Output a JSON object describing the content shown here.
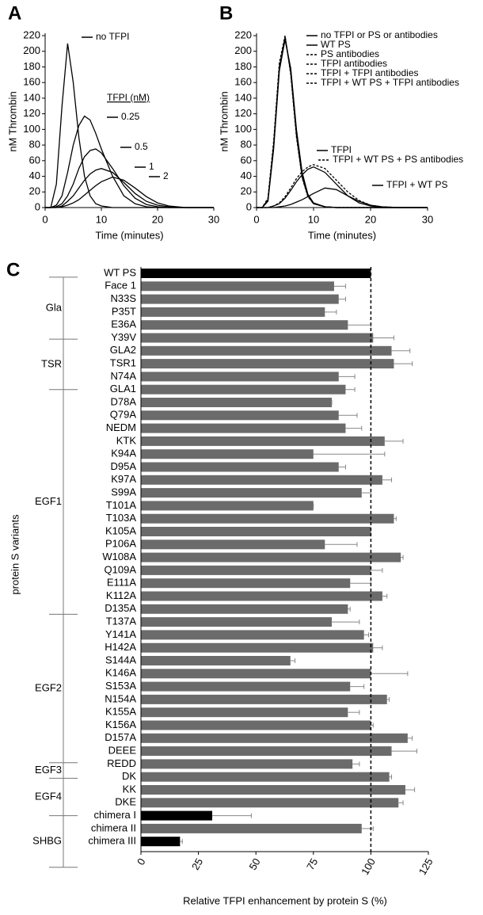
{
  "chart_data": [
    {
      "type": "line",
      "panel": "A",
      "xlabel": "Time (minutes)",
      "ylabel": "nM Thrombin",
      "xlim": [
        0,
        30
      ],
      "ylim": [
        0,
        220
      ],
      "xticks": [
        0,
        10,
        20,
        30
      ],
      "yticks": [
        0,
        20,
        40,
        60,
        80,
        100,
        120,
        140,
        160,
        180,
        200,
        220
      ],
      "legend_title": "TFPI (nM)",
      "x": [
        0,
        1,
        2,
        3,
        4,
        5,
        6,
        7,
        8,
        9,
        10,
        12,
        14,
        16,
        18,
        20,
        22,
        25,
        30
      ],
      "series": [
        {
          "name": "no TFPI",
          "color": "#000000",
          "dashed": false,
          "values": [
            0,
            0,
            30,
            130,
            210,
            160,
            90,
            40,
            15,
            5,
            2,
            0,
            0,
            0,
            0,
            0,
            0,
            0,
            0
          ]
        },
        {
          "name": "0.25",
          "color": "#000000",
          "dashed": false,
          "values": [
            0,
            0,
            3,
            15,
            45,
            80,
            105,
            117,
            112,
            95,
            75,
            40,
            15,
            5,
            1,
            0,
            0,
            0,
            0
          ]
        },
        {
          "name": "0.5",
          "color": "#000000",
          "dashed": false,
          "values": [
            0,
            0,
            1,
            5,
            15,
            30,
            50,
            65,
            73,
            75,
            70,
            50,
            28,
            12,
            4,
            1,
            0,
            0,
            0
          ]
        },
        {
          "name": "1",
          "color": "#000000",
          "dashed": false,
          "values": [
            0,
            0,
            0,
            2,
            8,
            15,
            25,
            35,
            43,
            48,
            50,
            45,
            32,
            18,
            8,
            3,
            1,
            0,
            0
          ]
        },
        {
          "name": "2",
          "color": "#000000",
          "dashed": false,
          "values": [
            0,
            0,
            0,
            1,
            3,
            6,
            10,
            16,
            22,
            28,
            33,
            39,
            35,
            25,
            14,
            6,
            2,
            0,
            0
          ]
        }
      ]
    },
    {
      "type": "line",
      "panel": "B",
      "xlabel": "Time (minutes)",
      "ylabel": "nM Thrombin",
      "xlim": [
        0,
        30
      ],
      "ylim": [
        0,
        220
      ],
      "xticks": [
        0,
        10,
        20,
        30
      ],
      "yticks": [
        0,
        20,
        40,
        60,
        80,
        100,
        120,
        140,
        160,
        180,
        200,
        220
      ],
      "x": [
        0,
        1,
        2,
        3,
        4,
        5,
        6,
        7,
        8,
        9,
        10,
        12,
        14,
        16,
        18,
        20,
        22,
        25,
        30
      ],
      "series": [
        {
          "name": "no TFPI or PS or antibodies",
          "color": "#000000",
          "dashed": false,
          "values": [
            0,
            0,
            10,
            80,
            180,
            218,
            175,
            95,
            40,
            15,
            5,
            1,
            0,
            0,
            0,
            0,
            0,
            0,
            0
          ]
        },
        {
          "name": "WT PS",
          "color": "#000000",
          "dashed": false,
          "values": [
            0,
            0,
            8,
            75,
            175,
            215,
            178,
            100,
            45,
            17,
            6,
            1,
            0,
            0,
            0,
            0,
            0,
            0,
            0
          ]
        },
        {
          "name": "PS antibodies",
          "color": "#000000",
          "dashed": true,
          "values": [
            0,
            0,
            12,
            85,
            185,
            220,
            170,
            90,
            38,
            14,
            5,
            1,
            0,
            0,
            0,
            0,
            0,
            0,
            0
          ]
        },
        {
          "name": "TFPI antibodies",
          "color": "#000000",
          "dashed": true,
          "values": [
            0,
            0,
            9,
            78,
            178,
            216,
            176,
            97,
            42,
            16,
            5,
            1,
            0,
            0,
            0,
            0,
            0,
            0,
            0
          ]
        },
        {
          "name": "TFPI + TFPI antibodies",
          "color": "#000000",
          "dashed": true,
          "values": [
            0,
            0,
            11,
            82,
            182,
            219,
            172,
            93,
            39,
            15,
            5,
            1,
            0,
            0,
            0,
            0,
            0,
            0,
            0
          ]
        },
        {
          "name": "TFPI + WT PS + TFPI antibodies",
          "color": "#000000",
          "dashed": true,
          "values": [
            0,
            0,
            10,
            80,
            180,
            217,
            174,
            96,
            41,
            15,
            5,
            1,
            0,
            0,
            0,
            0,
            0,
            0,
            0
          ]
        },
        {
          "name": "TFPI",
          "color": "#000000",
          "dashed": false,
          "values": [
            0,
            0,
            0,
            2,
            5,
            12,
            22,
            33,
            42,
            49,
            52,
            45,
            30,
            15,
            6,
            2,
            0,
            0,
            0
          ]
        },
        {
          "name": "TFPI + WT PS + PS antibodies",
          "color": "#000000",
          "dashed": true,
          "values": [
            0,
            0,
            0,
            2,
            6,
            14,
            25,
            37,
            46,
            52,
            55,
            50,
            35,
            20,
            9,
            3,
            1,
            0,
            0
          ]
        },
        {
          "name": "TFPI + WT PS",
          "color": "#000000",
          "dashed": false,
          "values": [
            0,
            0,
            0,
            0,
            1,
            2,
            4,
            7,
            10,
            14,
            18,
            25,
            23,
            15,
            8,
            3,
            1,
            0,
            0
          ]
        }
      ]
    },
    {
      "type": "hbar",
      "panel": "C",
      "xlabel": "Relative TFPI enhancement by protein S (%)",
      "ylabel": "protein S variants",
      "xlim": [
        0,
        125
      ],
      "xticks": [
        0,
        25,
        50,
        75,
        100,
        125
      ],
      "reference_line": 100,
      "groups": [
        "Gla",
        "TSR",
        "EGF1",
        "EGF2",
        "EGF3",
        "EGF4",
        "SHBG"
      ],
      "categories": [
        "WT PS",
        "Face 1",
        "N33S",
        "P35T",
        "E36A",
        "Y39V",
        "GLA2",
        "TSR1",
        "N74A",
        "GLA1",
        "D78A",
        "Q79A",
        "NEDM",
        "KTK",
        "K94A",
        "D95A",
        "K97A",
        "S99A",
        "T101A",
        "T103A",
        "K105A",
        "P106A",
        "W108A",
        "Q109A",
        "E111A",
        "K112A",
        "D135A",
        "T137A",
        "Y141A",
        "H142A",
        "S144A",
        "K146A",
        "S153A",
        "N154A",
        "K155A",
        "K156A",
        "D157A",
        "DEEE",
        "REDD",
        "DK",
        "KK",
        "DKE",
        "chimera I",
        "chimera II",
        "chimera III"
      ],
      "values": [
        100,
        84,
        86,
        80,
        90,
        101,
        109,
        110,
        86,
        89,
        83,
        86,
        89,
        106,
        75,
        86,
        105,
        96,
        75,
        110,
        100,
        80,
        113,
        100,
        91,
        105,
        90,
        83,
        97,
        101,
        65,
        100,
        91,
        107,
        90,
        100,
        116,
        109,
        92,
        108,
        115,
        112,
        31,
        96,
        17
      ],
      "errors": [
        0,
        5,
        3,
        5,
        10,
        9,
        8,
        8,
        7,
        4,
        0,
        8,
        7,
        8,
        31,
        3,
        4,
        4,
        0,
        1,
        0,
        14,
        1,
        5,
        9,
        2,
        1,
        12,
        2,
        4,
        2,
        16,
        6,
        1,
        5,
        1,
        2,
        11,
        3,
        1,
        4,
        2,
        17,
        5,
        1
      ],
      "colors": [
        "#000000",
        "#6b6b6b",
        "#6b6b6b",
        "#6b6b6b",
        "#6b6b6b",
        "#6b6b6b",
        "#6b6b6b",
        "#6b6b6b",
        "#6b6b6b",
        "#6b6b6b",
        "#6b6b6b",
        "#6b6b6b",
        "#6b6b6b",
        "#6b6b6b",
        "#6b6b6b",
        "#6b6b6b",
        "#6b6b6b",
        "#6b6b6b",
        "#6b6b6b",
        "#6b6b6b",
        "#6b6b6b",
        "#6b6b6b",
        "#6b6b6b",
        "#6b6b6b",
        "#6b6b6b",
        "#6b6b6b",
        "#6b6b6b",
        "#6b6b6b",
        "#6b6b6b",
        "#6b6b6b",
        "#6b6b6b",
        "#6b6b6b",
        "#6b6b6b",
        "#6b6b6b",
        "#6b6b6b",
        "#6b6b6b",
        "#6b6b6b",
        "#6b6b6b",
        "#6b6b6b",
        "#6b6b6b",
        "#6b6b6b",
        "#6b6b6b",
        "#000000",
        "#6b6b6b",
        "#000000"
      ]
    }
  ]
}
